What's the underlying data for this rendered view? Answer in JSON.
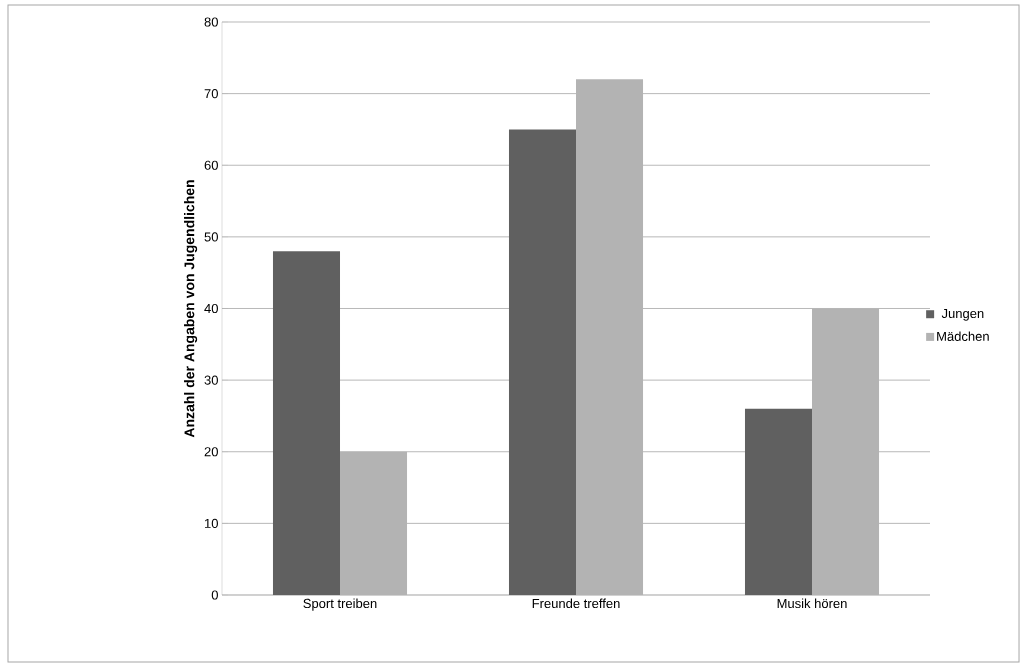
{
  "chart_data": {
    "type": "bar",
    "ylabel": "Anzahl der Angaben von Jugendlichen",
    "categories": [
      "Sport treiben",
      "Freunde treffen",
      "Musik hören"
    ],
    "series": [
      {
        "name": "Jungen",
        "color": "#606060",
        "values": [
          48,
          65,
          26
        ]
      },
      {
        "name": "Mädchen",
        "color": "#b3b3b3",
        "values": [
          20,
          72,
          40
        ]
      }
    ],
    "ylim": [
      0,
      80
    ],
    "yticks": [
      0,
      10,
      20,
      30,
      40,
      50,
      60,
      70,
      80
    ],
    "grid": "y",
    "legend": "right"
  }
}
